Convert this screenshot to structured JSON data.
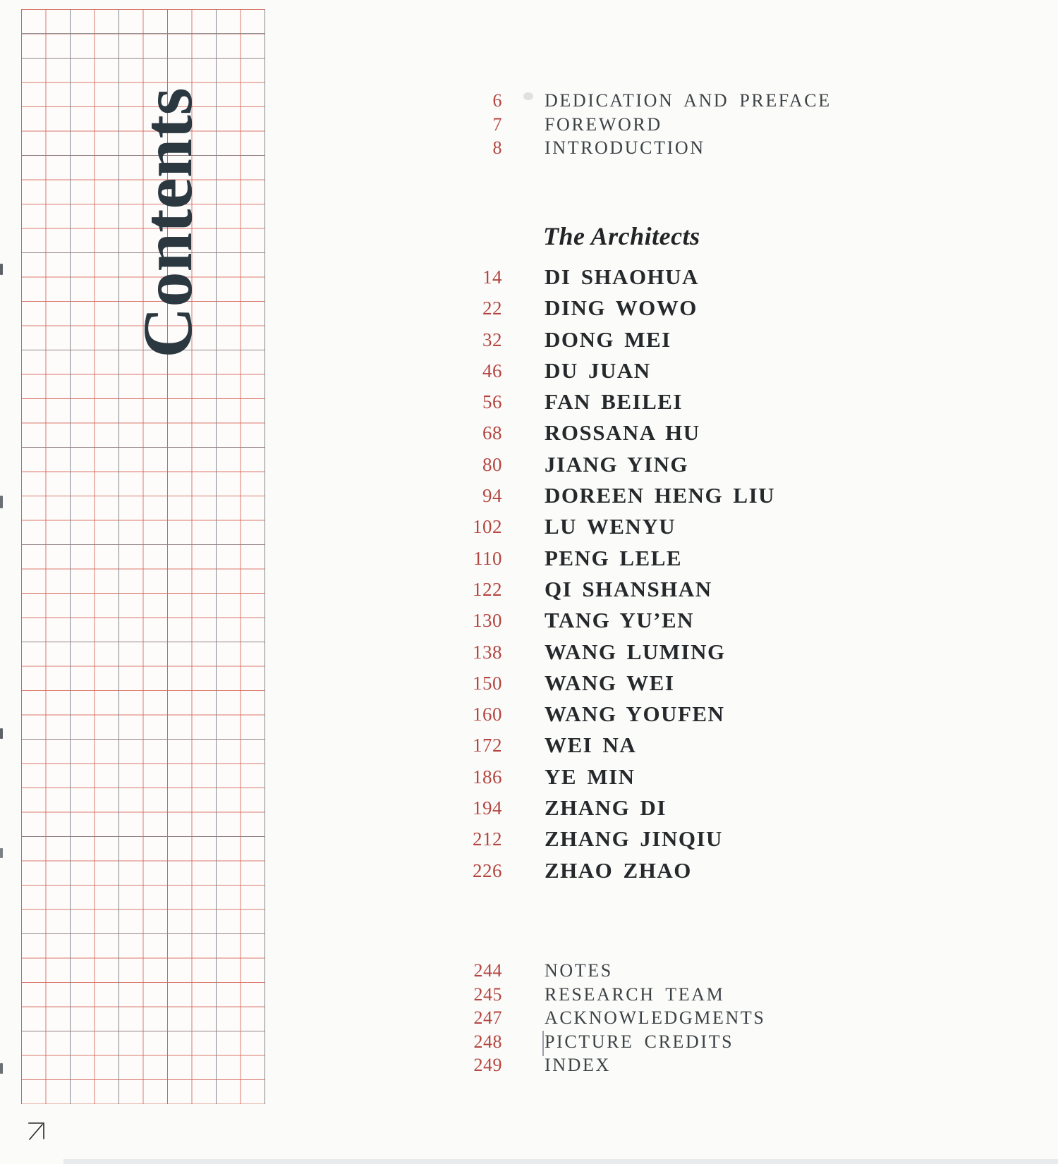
{
  "page": {
    "title": "Contents",
    "corner_icon": "arrow-up-right"
  },
  "toc": {
    "front_matter": [
      {
        "page": "6",
        "label": "DEDICATION AND PREFACE"
      },
      {
        "page": "7",
        "label": "FOREWORD"
      },
      {
        "page": "8",
        "label": "INTRODUCTION"
      }
    ],
    "section_heading": "The Architects",
    "architects": [
      {
        "page": "14",
        "label": "DI SHAOHUA"
      },
      {
        "page": "22",
        "label": "DING WOWO"
      },
      {
        "page": "32",
        "label": "DONG MEI"
      },
      {
        "page": "46",
        "label": "DU JUAN"
      },
      {
        "page": "56",
        "label": "FAN BEILEI"
      },
      {
        "page": "68",
        "label": "ROSSANA HU"
      },
      {
        "page": "80",
        "label": "JIANG YING"
      },
      {
        "page": "94",
        "label": "DOREEN HENG LIU"
      },
      {
        "page": "102",
        "label": "LU WENYU"
      },
      {
        "page": "110",
        "label": "PENG LELE"
      },
      {
        "page": "122",
        "label": "QI SHANSHAN"
      },
      {
        "page": "130",
        "label": "TANG YU’EN"
      },
      {
        "page": "138",
        "label": "WANG LUMING"
      },
      {
        "page": "150",
        "label": "WANG WEI"
      },
      {
        "page": "160",
        "label": "WANG YOUFEN"
      },
      {
        "page": "172",
        "label": "WEI NA"
      },
      {
        "page": "186",
        "label": "YE MIN"
      },
      {
        "page": "194",
        "label": "ZHANG DI"
      },
      {
        "page": "212",
        "label": "ZHANG JINQIU"
      },
      {
        "page": "226",
        "label": "ZHAO ZHAO"
      }
    ],
    "back_matter": [
      {
        "page": "244",
        "label": "NOTES"
      },
      {
        "page": "245",
        "label": "RESEARCH TEAM"
      },
      {
        "page": "247",
        "label": "ACKNOWLEDGMENTS"
      },
      {
        "page": "248",
        "label": "PICTURE CREDITS"
      },
      {
        "page": "249",
        "label": "INDEX"
      }
    ]
  },
  "colors": {
    "page_number_red": "#b5453f",
    "entry_text_dark": "#26292b",
    "front_back_text": "#3d4245",
    "title_dark_slate": "#2c3840",
    "grid_red_line": "#d4604f",
    "grid_gray_line": "#7d868d"
  }
}
